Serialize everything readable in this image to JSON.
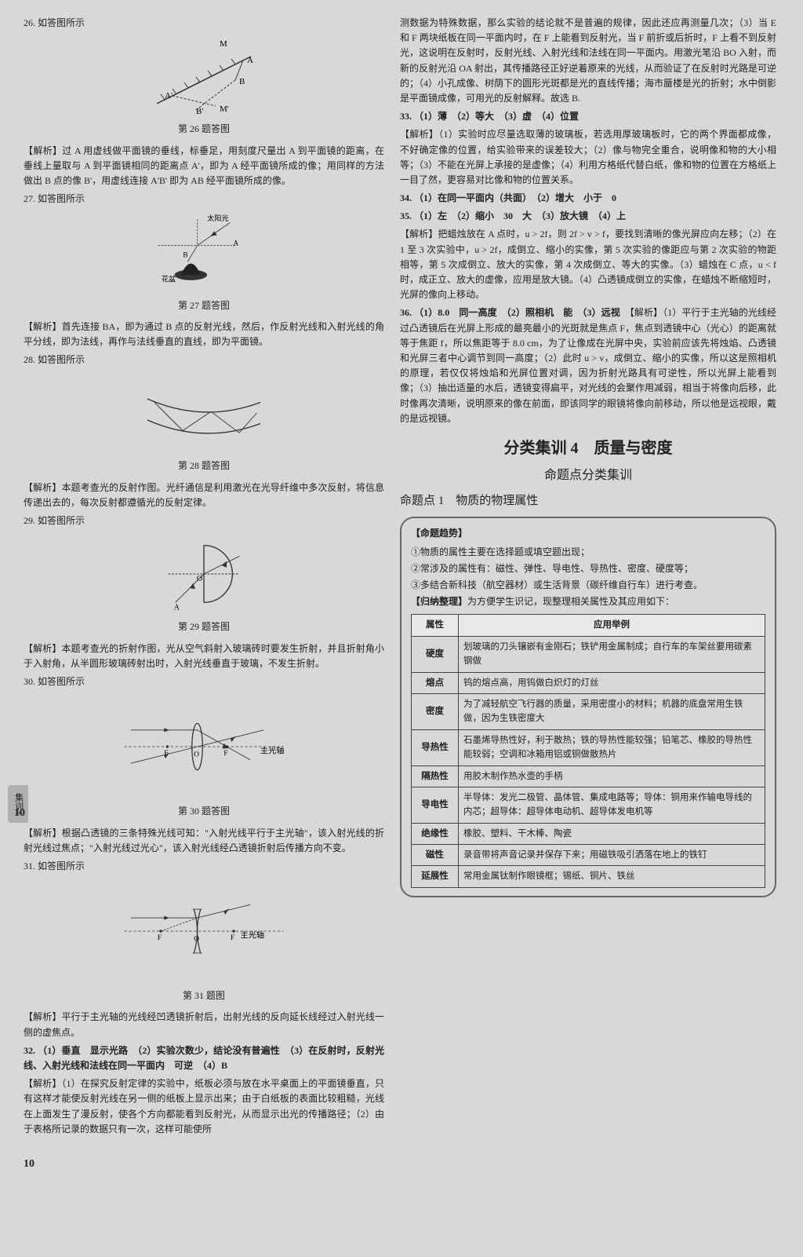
{
  "background_color": "#d8d8d8",
  "text_color": "#222222",
  "left": {
    "q26": {
      "title": "26. 如答图所示",
      "fig_caption": "第 26 题答图",
      "analysis_label": "【解析】",
      "analysis": "过 A 用虚线做平面镜的垂线，标垂足，用刻度尺量出 A 到平面镜的距离，在垂线上量取与 A 到平面镜相同的距离点 A'，即为 A 经平面镜所成的像；用同样的方法做出 B 点的像 B'，用虚线连接 A'B' 即为 AB 经平面镜所成的像。"
    },
    "q27": {
      "title": "27. 如答图所示",
      "sun_label": "太阳光",
      "pot_label": "花盆",
      "fig_caption": "第 27 题答图",
      "analysis_label": "【解析】",
      "analysis": "首先连接 BA，即为通过 B 点的反射光线，然后，作反射光线和入射光线的角平分线，即为法线，再作与法线垂直的直线，即为平面镜。"
    },
    "q28": {
      "title": "28. 如答图所示",
      "fig_caption": "第 28 题答图",
      "analysis_label": "【解析】",
      "analysis": "本题考查光的反射作图。光纤通信是利用激光在光导纤维中多次反射，将信息传递出去的，每次反射都遵循光的反射定律。"
    },
    "q29": {
      "title": "29. 如答图所示",
      "fig_caption": "第 29 题答图",
      "analysis_label": "【解析】",
      "analysis": "本题考查光的折射作图，光从空气斜射入玻璃砖时要发生折射，并且折射角小于入射角，从半圆形玻璃砖射出时，入射光线垂直于玻璃，不发生折射。"
    },
    "q30": {
      "title": "30. 如答图所示",
      "axis_label": "主光轴",
      "fig_caption": "第 30 题答图",
      "analysis_label": "【解析】",
      "analysis": "根据凸透镜的三条特殊光线可知：\"入射光线平行于主光轴\"，该入射光线的折射光线过焦点；\"入射光线过光心\"，该入射光线经凸透镜折射后传播方向不变。"
    },
    "q31": {
      "title": "31. 如答图所示",
      "axis_label": "主光轴",
      "fig_caption": "第 31 题图",
      "analysis_label": "【解析】",
      "analysis": "平行于主光轴的光线经凹透镜折射后，出射光线的反向延长线经过入射光线一侧的虚焦点。"
    },
    "q32": {
      "title": "32. （1）垂直　显示光路　（2）实验次数少，结论没有普遍性　（3）在反射时，反射光线、入射光线和法线在同一平面内　可逆　（4）B",
      "analysis_label": "【解析】",
      "analysis": "（1）在探究反射定律的实验中，纸板必须与放在水平桌面上的平面镜垂直，只有这样才能使反射光线在另一侧的纸板上显示出来；由于白纸板的表面比较粗糙，光线在上面发生了漫反射，使各个方向都能看到反射光，从而显示出光的传播路径；（2）由于表格所记录的数据只有一次，这样可能使所"
    }
  },
  "right": {
    "continuation": "测数据为特殊数据，那么实验的结论就不是普遍的规律，因此还应再测量几次；（3）当 E 和 F 两块纸板在同一平面内时，在 F 上能看到反射光，当 F 前折或后折时，F 上看不到反射光，这说明在反射时，反射光线、入射光线和法线在同一平面内。用激光笔沿 BO 入射，而新的反射光沿 OA 射出，其传播路径正好逆着原来的光线，从而验证了在反射时光路是可逆的；（4）小孔成像、树荫下的圆形光斑都是光的直线传播；海市蜃楼是光的折射；水中倒影是平面镜成像，可用光的反射解释。故选 B.",
    "q33": {
      "title": "33. （1）薄　（2）等大　（3）虚　（4）位置",
      "analysis_label": "【解析】",
      "analysis": "（1）实验时应尽量选取薄的玻璃板，若选用厚玻璃板时，它的两个界面都成像，不好确定像的位置，给实验带来的误差较大；（2）像与物完全重合，说明像和物的大小相等；（3）不能在光屏上承接的是虚像；（4）利用方格纸代替白纸，像和物的位置在方格纸上一目了然，更容易对比像和物的位置关系。"
    },
    "q34": {
      "title": "34. （1）在同一平面内（共面）　（2）增大　小于　0"
    },
    "q35": {
      "title": "35. （1）左　（2）缩小　30　大　（3）放大镜　（4）上",
      "analysis_label": "【解析】",
      "analysis": "把蜡烛放在 A 点时，u > 2f，则 2f > v > f，要找到清晰的像光屏应向左移；（2）在 1 至 3 次实验中，u > 2f，成倒立、缩小的实像，第 5 次实验的像距应与第 2 次实验的物距相等，第 5 次成倒立、放大的实像，第 4 次成倒立、等大的实像。（3）蜡烛在 C 点，u < f 时，成正立、放大的虚像，应用是放大镜。（4）凸透镜成倒立的实像，在蜡烛不断缩短时，光屏的像向上移动。"
    },
    "q36": {
      "title": "36. （1）8.0　同一高度　（2）照相机　能　（3）远视　",
      "analysis_label": "【解析】",
      "analysis": "（1）平行于主光轴的光线经过凸透镜后在光屏上形成的最亮最小的光斑就是焦点 F，焦点到透镜中心（光心）的距离就等于焦距 f，所以焦距等于 8.0 cm，为了让像成在光屏中央，实验前应该先将烛焰、凸透镜和光屏三者中心调节到同一高度；（2）此时 u > v，成倒立、缩小的实像，所以这是照相机的原理，若仅仅将烛焰和光屏位置对调，因为折射光路具有可逆性，所以光屏上能看到像；（3）抽出适量的水后，透镜变得扁平，对光线的会聚作用减弱，相当于将像向后移，此时像再次清晰，说明原来的像在前面，即该同学的眼镜将像向前移动，所以他是远视眼，戴的是远视镜。"
    },
    "section": {
      "main_title": "分类集训 4　质量与密度",
      "sub_title": "命题点分类集训",
      "topic_title": "命题点 1　物质的物理属性"
    },
    "trend": {
      "title": "【命题趋势】",
      "items": [
        "①物质的属性主要在选择题或填空题出现；",
        "②常涉及的属性有：磁性、弹性、导电性、导热性、密度、硬度等；",
        "③多结合新科技（航空器材）或生活背景（碳纤维自行车）进行考查。"
      ],
      "summary_label": "【归纳整理】",
      "summary": "为方便学生识记，现整理相关属性及其应用如下："
    },
    "table": {
      "header_attr": "属性",
      "header_example": "应用举例",
      "rows": [
        {
          "attr": "硬度",
          "ex": "划玻璃的刀头镶嵌有金刚石；铁铲用金属制成；自行车的车架丝要用碳素钢做"
        },
        {
          "attr": "熔点",
          "ex": "钨的熔点高，用钨做白炽灯的灯丝"
        },
        {
          "attr": "密度",
          "ex": "为了减轻航空飞行器的质量，采用密度小的材料；机器的底盘常用生铁做，因为生铁密度大"
        },
        {
          "attr": "导热性",
          "ex": "石墨烯导热性好，利于散热；铁的导热性能较强；铅笔芯、橡胶的导热性能较弱；空调和冰箱用铝或铜做散热片"
        },
        {
          "attr": "隔热性",
          "ex": "用胶木制作热水壶的手柄"
        },
        {
          "attr": "导电性",
          "ex": "半导体：发光二极管、晶体管、集成电路等；导体：铜用来作输电导线的内芯；超导体：超导体电动机、超导体发电机等"
        },
        {
          "attr": "绝缘性",
          "ex": "橡胶、塑料、干木棒、陶瓷"
        },
        {
          "attr": "磁性",
          "ex": "录音带将声音记录并保存下来；用磁铁吸引洒落在地上的铁钉"
        },
        {
          "attr": "延展性",
          "ex": "常用金属钛制作眼镜框；锡纸、铜片、铁丝"
        }
      ]
    }
  },
  "side_tab": "集训4",
  "side_page": "10",
  "footer": "10"
}
